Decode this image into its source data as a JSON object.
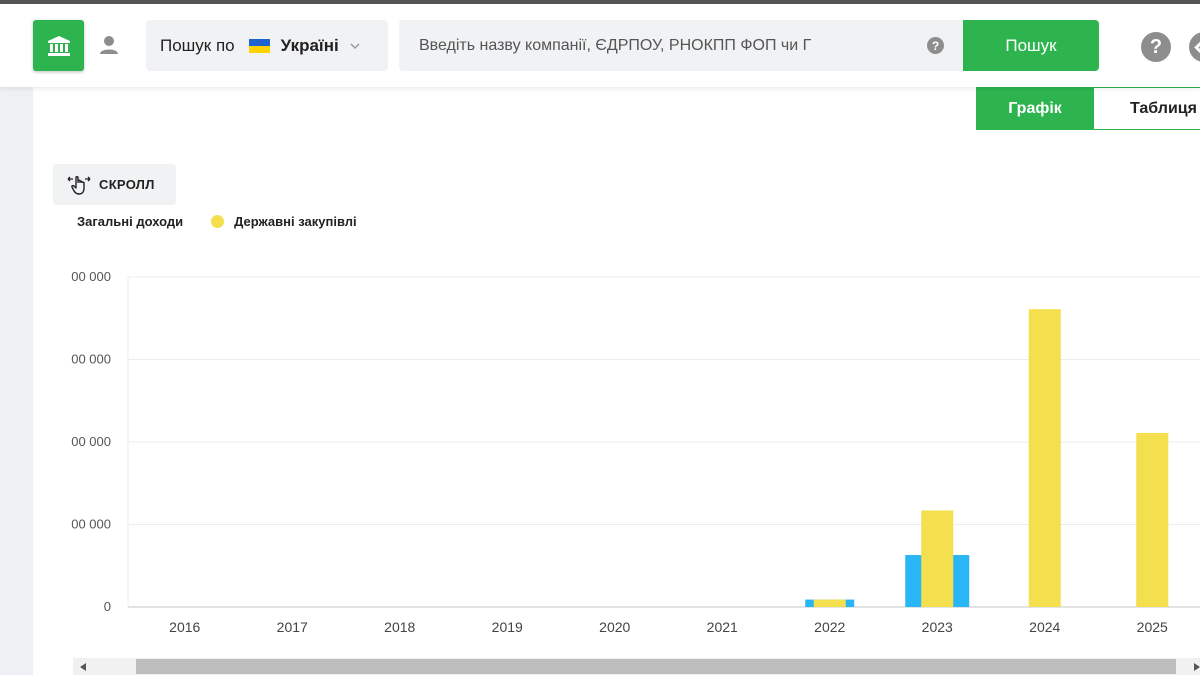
{
  "header": {
    "scope_prefix": "Пошук по",
    "scope_country": "Україні",
    "search_placeholder": "Введіть назву компанії, ЄДРПОУ, РНОКПП ФОП чи Г",
    "search_help": "?",
    "search_button": "Пошук",
    "help_button": "?"
  },
  "icons": {
    "logo": "bank-icon",
    "user": "user-icon",
    "flag": "ukraine-flag-icon",
    "scope_chevron": "chevron-down-icon",
    "scroll": "hand-swipe-icon"
  },
  "tabs": [
    {
      "label": "Графік",
      "active": true
    },
    {
      "label": "Таблиця",
      "active": false
    }
  ],
  "scroll_button": "СКРОЛЛ",
  "colors": {
    "accent": "#2db44f",
    "series_total": "#29b6f6",
    "series_procurement": "#f4df4e"
  },
  "chart_data": {
    "type": "bar",
    "categories": [
      "2016",
      "2017",
      "2018",
      "2019",
      "2020",
      "2021",
      "2022",
      "2023",
      "2024",
      "2025"
    ],
    "series": [
      {
        "name": "Загальні доходи",
        "values": [
          0,
          0,
          0,
          0,
          0,
          0,
          9000,
          63000,
          0,
          0
        ]
      },
      {
        "name": "Державні закупівлі",
        "values": [
          0,
          0,
          0,
          0,
          0,
          0,
          9000,
          117000,
          361000,
          211000
        ]
      }
    ],
    "y_tick_labels": [
      "0",
      "00 000",
      "00 000",
      "00 000",
      "00 000"
    ],
    "ylim": [
      0,
      400000
    ],
    "grid": true,
    "legend": "top-left"
  }
}
